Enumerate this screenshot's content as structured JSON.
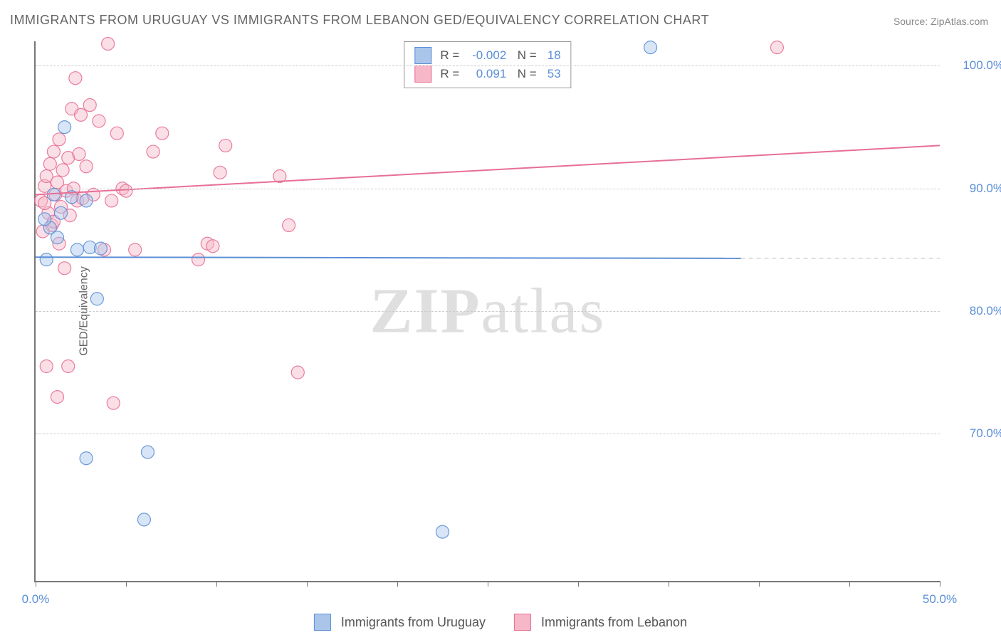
{
  "title": "IMMIGRANTS FROM URUGUAY VS IMMIGRANTS FROM LEBANON GED/EQUIVALENCY CORRELATION CHART",
  "source_label": "Source: ZipAtlas.com",
  "ylabel": "GED/Equivalency",
  "watermark": "ZIPatlas",
  "chart": {
    "type": "scatter",
    "xlim": [
      0,
      50
    ],
    "ylim": [
      58,
      102
    ],
    "x_ticks": [
      0,
      5,
      10,
      15,
      20,
      25,
      30,
      35,
      40,
      45,
      50
    ],
    "x_tick_labels_shown": {
      "0": "0.0%",
      "50": "50.0%"
    },
    "y_ticks": [
      70,
      80,
      90,
      100
    ],
    "y_tick_labels": {
      "70": "70.0%",
      "80": "80.0%",
      "90": "90.0%",
      "100": "100.0%"
    },
    "grid_color": "#d0d4d8",
    "background_color": "#ffffff",
    "marker_radius": 9,
    "marker_opacity": 0.45,
    "line_width": 2,
    "series": [
      {
        "name": "Immigrants from Uruguay",
        "color_fill": "#a9c6ea",
        "color_stroke": "#5b8fd6",
        "r_value": "-0.002",
        "n_value": "18",
        "regression": {
          "x1": 0,
          "y1": 84.4,
          "x2": 39,
          "y2": 84.3
        },
        "points": [
          {
            "x": 0.6,
            "y": 84.2
          },
          {
            "x": 0.8,
            "y": 86.8
          },
          {
            "x": 1.0,
            "y": 89.5
          },
          {
            "x": 0.5,
            "y": 87.5
          },
          {
            "x": 1.2,
            "y": 86.0
          },
          {
            "x": 1.4,
            "y": 88.0
          },
          {
            "x": 1.6,
            "y": 95.0
          },
          {
            "x": 2.0,
            "y": 89.3
          },
          {
            "x": 2.3,
            "y": 85.0
          },
          {
            "x": 2.8,
            "y": 89.0
          },
          {
            "x": 3.0,
            "y": 85.2
          },
          {
            "x": 3.6,
            "y": 85.1
          },
          {
            "x": 3.4,
            "y": 81.0
          },
          {
            "x": 2.8,
            "y": 68.0
          },
          {
            "x": 6.2,
            "y": 68.5
          },
          {
            "x": 6.0,
            "y": 63.0
          },
          {
            "x": 22.5,
            "y": 62.0
          },
          {
            "x": 34.0,
            "y": 101.5
          }
        ]
      },
      {
        "name": "Immigrants from Lebanon",
        "color_fill": "#f6b8c8",
        "color_stroke": "#e76f95",
        "r_value": "0.091",
        "n_value": "53",
        "regression": {
          "x1": 0,
          "y1": 89.5,
          "x2": 50,
          "y2": 93.5
        },
        "points": [
          {
            "x": 0.3,
            "y": 89.0
          },
          {
            "x": 0.5,
            "y": 90.2
          },
          {
            "x": 0.6,
            "y": 91.0
          },
          {
            "x": 0.7,
            "y": 88.0
          },
          {
            "x": 0.8,
            "y": 92.0
          },
          {
            "x": 0.9,
            "y": 87.0
          },
          {
            "x": 1.0,
            "y": 93.0
          },
          {
            "x": 1.1,
            "y": 89.5
          },
          {
            "x": 1.2,
            "y": 90.5
          },
          {
            "x": 1.3,
            "y": 85.5
          },
          {
            "x": 1.4,
            "y": 88.5
          },
          {
            "x": 1.5,
            "y": 91.5
          },
          {
            "x": 1.6,
            "y": 83.5
          },
          {
            "x": 1.7,
            "y": 89.8
          },
          {
            "x": 1.8,
            "y": 92.5
          },
          {
            "x": 1.9,
            "y": 87.8
          },
          {
            "x": 2.0,
            "y": 96.5
          },
          {
            "x": 2.1,
            "y": 90.0
          },
          {
            "x": 2.2,
            "y": 99.0
          },
          {
            "x": 2.3,
            "y": 89.0
          },
          {
            "x": 2.5,
            "y": 96.0
          },
          {
            "x": 2.6,
            "y": 89.2
          },
          {
            "x": 2.8,
            "y": 91.8
          },
          {
            "x": 3.0,
            "y": 96.8
          },
          {
            "x": 3.2,
            "y": 89.5
          },
          {
            "x": 3.5,
            "y": 95.5
          },
          {
            "x": 3.8,
            "y": 85.0
          },
          {
            "x": 4.0,
            "y": 101.8
          },
          {
            "x": 4.2,
            "y": 89.0
          },
          {
            "x": 4.3,
            "y": 72.5
          },
          {
            "x": 4.5,
            "y": 94.5
          },
          {
            "x": 4.8,
            "y": 90.0
          },
          {
            "x": 5.0,
            "y": 89.8
          },
          {
            "x": 5.5,
            "y": 85.0
          },
          {
            "x": 6.5,
            "y": 93.0
          },
          {
            "x": 7.0,
            "y": 94.5
          },
          {
            "x": 9.5,
            "y": 85.5
          },
          {
            "x": 9.8,
            "y": 85.3
          },
          {
            "x": 9.0,
            "y": 84.2
          },
          {
            "x": 10.2,
            "y": 91.3
          },
          {
            "x": 10.5,
            "y": 93.5
          },
          {
            "x": 13.5,
            "y": 91.0
          },
          {
            "x": 14.0,
            "y": 87.0
          },
          {
            "x": 14.5,
            "y": 75.0
          },
          {
            "x": 0.6,
            "y": 75.5
          },
          {
            "x": 1.8,
            "y": 75.5
          },
          {
            "x": 1.2,
            "y": 73.0
          },
          {
            "x": 41.0,
            "y": 101.5
          },
          {
            "x": 2.4,
            "y": 92.8
          },
          {
            "x": 1.3,
            "y": 94.0
          },
          {
            "x": 0.4,
            "y": 86.5
          },
          {
            "x": 0.5,
            "y": 88.8
          },
          {
            "x": 1.0,
            "y": 87.3
          }
        ]
      }
    ]
  },
  "bottom_legend": [
    {
      "label": "Immigrants from Uruguay",
      "fill": "#a9c6ea",
      "stroke": "#5b8fd6"
    },
    {
      "label": "Immigrants from Lebanon",
      "fill": "#f6b8c8",
      "stroke": "#e76f95"
    }
  ]
}
